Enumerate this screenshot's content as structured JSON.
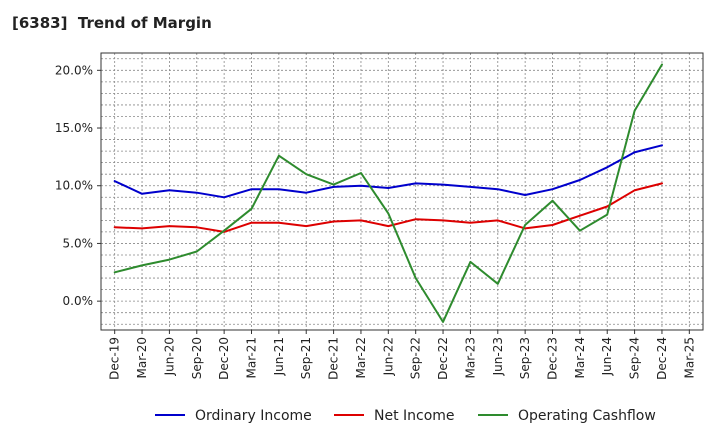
{
  "title": "[6383]  Trend of Margin",
  "chart_data": {
    "type": "line",
    "title": "[6383]  Trend of Margin",
    "xlabel": "",
    "ylabel": "",
    "ylim": [
      -2.5,
      21.5
    ],
    "yticks": [
      0,
      5,
      10,
      15,
      20
    ],
    "ytick_labels": [
      "0.0%",
      "5.0%",
      "10.0%",
      "15.0%",
      "20.0%"
    ],
    "categories": [
      "Dec-19",
      "Mar-20",
      "Jun-20",
      "Sep-20",
      "Dec-20",
      "Mar-21",
      "Jun-21",
      "Sep-21",
      "Dec-21",
      "Mar-22",
      "Jun-22",
      "Sep-22",
      "Dec-22",
      "Mar-23",
      "Jun-23",
      "Sep-23",
      "Dec-23",
      "Mar-24",
      "Jun-24",
      "Sep-24",
      "Dec-24",
      "Mar-25"
    ],
    "grid": true,
    "legend_position": "bottom",
    "series": [
      {
        "name": "Ordinary Income",
        "color": "#0000cc",
        "values": [
          10.4,
          9.3,
          9.6,
          9.4,
          9.0,
          9.7,
          9.7,
          9.4,
          9.9,
          10.0,
          9.8,
          10.2,
          10.1,
          9.9,
          9.7,
          9.2,
          9.7,
          10.5,
          11.6,
          12.9,
          13.5,
          null
        ]
      },
      {
        "name": "Net Income",
        "color": "#dd0000",
        "values": [
          6.4,
          6.3,
          6.5,
          6.4,
          6.0,
          6.8,
          6.8,
          6.5,
          6.9,
          7.0,
          6.5,
          7.1,
          7.0,
          6.8,
          7.0,
          6.3,
          6.6,
          7.4,
          8.2,
          9.6,
          10.2,
          null
        ]
      },
      {
        "name": "Operating Cashflow",
        "color": "#2e8b2e",
        "values": [
          2.5,
          3.1,
          3.6,
          4.3,
          6.1,
          8.0,
          12.6,
          11.0,
          10.1,
          11.1,
          7.6,
          2.0,
          -1.8,
          3.4,
          1.5,
          6.6,
          8.7,
          6.1,
          7.5,
          16.5,
          20.5,
          null
        ]
      }
    ]
  }
}
